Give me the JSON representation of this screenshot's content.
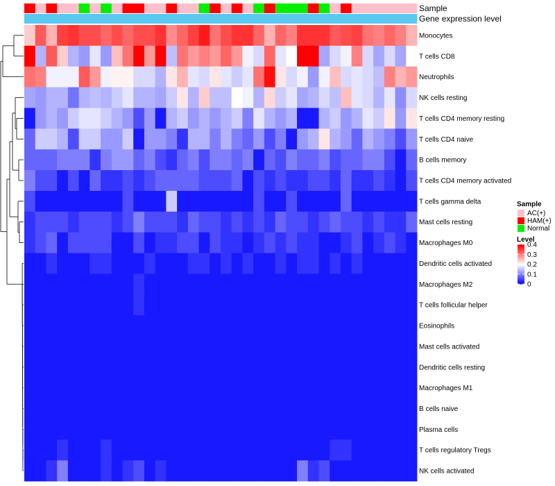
{
  "chart_data": {
    "type": "heatmap",
    "title": "",
    "annotation_labels": [
      "Sample",
      "Gene expression level"
    ],
    "columns": 36,
    "sample_groups": [
      "AC(+)",
      "HAM(+)",
      "Normal"
    ],
    "sample_colors": {
      "AC(+)": "#ffc0cb",
      "HAM(+)": "#ff0000",
      "Normal": "#00ee00"
    },
    "samples": [
      "HAM(+)",
      "AC(+)",
      "HAM(+)",
      "AC(+)",
      "AC(+)",
      "Normal",
      "AC(+)",
      "Normal",
      "AC(+)",
      "HAM(+)",
      "HAM(+)",
      "AC(+)",
      "AC(+)",
      "HAM(+)",
      "AC(+)",
      "AC(+)",
      "Normal",
      "HAM(+)",
      "AC(+)",
      "HAM(+)",
      "AC(+)",
      "Normal",
      "HAM(+)",
      "Normal",
      "Normal",
      "Normal",
      "HAM(+)",
      "Normal",
      "AC(+)",
      "HAM(+)",
      "AC(+)",
      "AC(+)",
      "AC(+)",
      "AC(+)",
      "AC(+)",
      "AC(+)"
    ],
    "expression_level_color": "#5bc8f0",
    "legend": {
      "sample_title": "Sample",
      "level_title": "Level",
      "level_ticks": [
        "0.4",
        "0.3",
        "0.2",
        "0.1",
        "0"
      ],
      "level_range": [
        0,
        0.4
      ],
      "level_colors": [
        "#0000ff",
        "#ffffff",
        "#ff0000"
      ]
    },
    "rows": [
      {
        "name": "Monocytes",
        "values": [
          0.24,
          0.33,
          0.26,
          0.35,
          0.36,
          0.34,
          0.34,
          0.32,
          0.34,
          0.32,
          0.34,
          0.34,
          0.36,
          0.29,
          0.32,
          0.35,
          0.38,
          0.31,
          0.34,
          0.36,
          0.36,
          0.32,
          0.26,
          0.32,
          0.3,
          0.36,
          0.36,
          0.36,
          0.33,
          0.34,
          0.35,
          0.31,
          0.3,
          0.32,
          0.3,
          0.26
        ]
      },
      {
        "name": "T cells CD8",
        "values": [
          0.4,
          0.14,
          0.33,
          0.24,
          0.14,
          0.12,
          0.18,
          0.12,
          0.25,
          0.31,
          0.4,
          0.28,
          0.4,
          0.15,
          0.31,
          0.28,
          0.3,
          0.28,
          0.32,
          0.28,
          0.19,
          0.17,
          0.32,
          0.18,
          0.2,
          0.4,
          0.4,
          0.13,
          0.17,
          0.19,
          0.3,
          0.17,
          0.13,
          0.17,
          0.13,
          0.2
        ]
      },
      {
        "name": "Neutrophils",
        "values": [
          0.31,
          0.3,
          0.19,
          0.19,
          0.19,
          0.33,
          0.28,
          0.19,
          0.21,
          0.21,
          0.17,
          0.17,
          0.14,
          0.22,
          0.26,
          0.18,
          0.17,
          0.22,
          0.18,
          0.16,
          0.18,
          0.31,
          0.39,
          0.22,
          0.17,
          0.19,
          0.12,
          0.19,
          0.25,
          0.17,
          0.18,
          0.17,
          0.15,
          0.3,
          0.26,
          0.28
        ]
      },
      {
        "name": "NK cells resting",
        "values": [
          0.13,
          0.12,
          0.14,
          0.14,
          0.09,
          0.14,
          0.15,
          0.14,
          0.16,
          0.18,
          0.14,
          0.14,
          0.13,
          0.16,
          0.22,
          0.14,
          0.24,
          0.15,
          0.15,
          0.2,
          0.19,
          0.14,
          0.23,
          0.16,
          0.18,
          0.13,
          0.14,
          0.17,
          0.15,
          0.25,
          0.18,
          0.17,
          0.14,
          0.18,
          0.11,
          0.17
        ]
      },
      {
        "name": "T cells CD4 memory resting",
        "values": [
          0.02,
          0.12,
          0.14,
          0.12,
          0.16,
          0.18,
          0.18,
          0.16,
          0.14,
          0.12,
          0.06,
          0.12,
          0.02,
          0.14,
          0.16,
          0.12,
          0.14,
          0.12,
          0.14,
          0.16,
          0.1,
          0.18,
          0.14,
          0.12,
          0.14,
          0.02,
          0.02,
          0.14,
          0.16,
          0.12,
          0.14,
          0.18,
          0.16,
          0.22,
          0.12,
          0.22
        ]
      },
      {
        "name": "T cells CD4 naive",
        "values": [
          0.08,
          0.16,
          0.16,
          0.14,
          0.06,
          0.16,
          0.16,
          0.12,
          0.12,
          0.16,
          0.02,
          0.12,
          0.12,
          0.1,
          0.04,
          0.14,
          0.14,
          0.1,
          0.14,
          0.1,
          0.08,
          0.12,
          0.06,
          0.1,
          0.02,
          0.12,
          0.14,
          0.22,
          0.14,
          0.12,
          0.08,
          0.14,
          0.12,
          0.1,
          0.06,
          0.12
        ]
      },
      {
        "name": "B cells memory",
        "values": [
          0.08,
          0.08,
          0.08,
          0.1,
          0.1,
          0.1,
          0.04,
          0.1,
          0.12,
          0.12,
          0.08,
          0.1,
          0.06,
          0.04,
          0.08,
          0.1,
          0.06,
          0.1,
          0.1,
          0.08,
          0.1,
          0.02,
          0.08,
          0.06,
          0.1,
          0.08,
          0.08,
          0.1,
          0.06,
          0.08,
          0.08,
          0.1,
          0.1,
          0.06,
          0.02,
          0.08
        ]
      },
      {
        "name": "T cells CD4 memory activated",
        "values": [
          0.1,
          0.06,
          0.06,
          0.02,
          0.06,
          0.02,
          0.08,
          0.04,
          0.04,
          0.06,
          0.04,
          0.06,
          0.08,
          0.08,
          0.08,
          0.08,
          0.06,
          0.06,
          0.06,
          0.08,
          0.02,
          0.06,
          0.04,
          0.06,
          0.04,
          0.04,
          0.06,
          0.06,
          0.04,
          0.08,
          0.04,
          0.04,
          0.06,
          0.04,
          0.02,
          0.06
        ]
      },
      {
        "name": "T cells gamma delta",
        "values": [
          0.06,
          0.02,
          0.02,
          0.02,
          0.02,
          0.02,
          0.02,
          0.02,
          0.02,
          0.06,
          0.02,
          0.02,
          0.02,
          0.16,
          0.02,
          0.02,
          0.02,
          0.02,
          0.02,
          0.02,
          0.02,
          0.06,
          0.02,
          0.02,
          0.06,
          0.02,
          0.02,
          0.02,
          0.02,
          0.08,
          0.02,
          0.02,
          0.02,
          0.02,
          0.02,
          0.02
        ]
      },
      {
        "name": "Mast cells resting",
        "values": [
          0.04,
          0.06,
          0.06,
          0.06,
          0.04,
          0.06,
          0.06,
          0.06,
          0.04,
          0.06,
          0.1,
          0.06,
          0.06,
          0.06,
          0.04,
          0.08,
          0.06,
          0.06,
          0.04,
          0.06,
          0.04,
          0.06,
          0.04,
          0.08,
          0.06,
          0.06,
          0.04,
          0.06,
          0.08,
          0.06,
          0.06,
          0.04,
          0.06,
          0.04,
          0.04,
          0.08
        ]
      },
      {
        "name": "Macrophages M0",
        "values": [
          0.04,
          0.06,
          0.08,
          0.02,
          0.06,
          0.06,
          0.06,
          0.06,
          0.02,
          0.02,
          0.06,
          0.02,
          0.04,
          0.04,
          0.06,
          0.06,
          0.02,
          0.06,
          0.04,
          0.04,
          0.02,
          0.04,
          0.06,
          0.04,
          0.06,
          0.04,
          0.04,
          0.02,
          0.02,
          0.04,
          0.06,
          0.02,
          0.04,
          0.06,
          0.04,
          0.02
        ]
      },
      {
        "name": "Dendritic cells activated",
        "values": [
          0.02,
          0.02,
          0.04,
          0.02,
          0.02,
          0.02,
          0.04,
          0.04,
          0.02,
          0.02,
          0.02,
          0.04,
          0.02,
          0.02,
          0.02,
          0.04,
          0.04,
          0.02,
          0.04,
          0.02,
          0.04,
          0.02,
          0.02,
          0.04,
          0.02,
          0.04,
          0.04,
          0.02,
          0.04,
          0.02,
          0.04,
          0.02,
          0.02,
          0.02,
          0.02,
          0.02
        ]
      },
      {
        "name": "Macrophages M2",
        "values": [
          0.02,
          0.02,
          0.02,
          0.02,
          0.02,
          0.02,
          0.02,
          0.02,
          0.02,
          0.02,
          0.04,
          0.02,
          0.02,
          0.02,
          0.02,
          0.02,
          0.02,
          0.02,
          0.02,
          0.02,
          0.02,
          0.02,
          0.02,
          0.02,
          0.02,
          0.02,
          0.02,
          0.02,
          0.02,
          0.02,
          0.02,
          0.02,
          0.02,
          0.02,
          0.02,
          0.02
        ]
      },
      {
        "name": "T cells follicular helper",
        "values": [
          0.02,
          0.02,
          0.02,
          0.02,
          0.02,
          0.02,
          0.02,
          0.02,
          0.02,
          0.02,
          0.04,
          0.02,
          0.02,
          0.02,
          0.02,
          0.02,
          0.02,
          0.02,
          0.02,
          0.02,
          0.02,
          0.02,
          0.02,
          0.02,
          0.02,
          0.02,
          0.02,
          0.02,
          0.02,
          0.02,
          0.02,
          0.02,
          0.02,
          0.02,
          0.02,
          0.02
        ]
      },
      {
        "name": "Eosinophils",
        "values": [
          0.02,
          0.02,
          0.02,
          0.02,
          0.02,
          0.02,
          0.02,
          0.02,
          0.02,
          0.02,
          0.02,
          0.02,
          0.02,
          0.02,
          0.02,
          0.02,
          0.02,
          0.02,
          0.02,
          0.02,
          0.02,
          0.02,
          0.02,
          0.02,
          0.02,
          0.02,
          0.02,
          0.02,
          0.02,
          0.02,
          0.02,
          0.02,
          0.02,
          0.02,
          0.02,
          0.02
        ]
      },
      {
        "name": "Mast cells activated",
        "values": [
          0.02,
          0.02,
          0.02,
          0.02,
          0.02,
          0.02,
          0.02,
          0.02,
          0.02,
          0.02,
          0.02,
          0.02,
          0.02,
          0.02,
          0.02,
          0.02,
          0.02,
          0.02,
          0.02,
          0.02,
          0.02,
          0.02,
          0.02,
          0.02,
          0.02,
          0.02,
          0.02,
          0.02,
          0.02,
          0.02,
          0.02,
          0.02,
          0.02,
          0.02,
          0.02,
          0.02
        ]
      },
      {
        "name": "Dendritic cells resting",
        "values": [
          0.02,
          0.02,
          0.02,
          0.02,
          0.02,
          0.02,
          0.02,
          0.02,
          0.02,
          0.02,
          0.02,
          0.02,
          0.02,
          0.02,
          0.02,
          0.02,
          0.02,
          0.02,
          0.02,
          0.02,
          0.02,
          0.02,
          0.02,
          0.02,
          0.02,
          0.02,
          0.02,
          0.02,
          0.02,
          0.02,
          0.02,
          0.02,
          0.02,
          0.02,
          0.02,
          0.02
        ]
      },
      {
        "name": "Macrophages M1",
        "values": [
          0.02,
          0.02,
          0.02,
          0.02,
          0.02,
          0.02,
          0.02,
          0.02,
          0.02,
          0.02,
          0.02,
          0.02,
          0.02,
          0.02,
          0.02,
          0.02,
          0.02,
          0.02,
          0.02,
          0.02,
          0.02,
          0.02,
          0.02,
          0.02,
          0.02,
          0.02,
          0.02,
          0.02,
          0.02,
          0.02,
          0.02,
          0.02,
          0.02,
          0.02,
          0.02,
          0.02
        ]
      },
      {
        "name": "B cells naive",
        "values": [
          0.02,
          0.02,
          0.02,
          0.02,
          0.02,
          0.02,
          0.02,
          0.02,
          0.02,
          0.02,
          0.02,
          0.02,
          0.02,
          0.02,
          0.02,
          0.02,
          0.02,
          0.02,
          0.02,
          0.02,
          0.02,
          0.02,
          0.02,
          0.02,
          0.02,
          0.02,
          0.02,
          0.02,
          0.02,
          0.02,
          0.02,
          0.02,
          0.02,
          0.02,
          0.02,
          0.02
        ]
      },
      {
        "name": "Plasma cells",
        "values": [
          0.02,
          0.02,
          0.02,
          0.02,
          0.02,
          0.02,
          0.02,
          0.02,
          0.02,
          0.02,
          0.02,
          0.02,
          0.02,
          0.02,
          0.02,
          0.02,
          0.02,
          0.02,
          0.02,
          0.02,
          0.02,
          0.02,
          0.02,
          0.02,
          0.02,
          0.02,
          0.02,
          0.02,
          0.02,
          0.02,
          0.02,
          0.02,
          0.02,
          0.02,
          0.02,
          0.02
        ]
      },
      {
        "name": "T cells regulatory  Tregs",
        "values": [
          0.02,
          0.02,
          0.02,
          0.04,
          0.02,
          0.02,
          0.02,
          0.04,
          0.02,
          0.02,
          0.02,
          0.02,
          0.02,
          0.02,
          0.02,
          0.02,
          0.02,
          0.02,
          0.02,
          0.02,
          0.02,
          0.02,
          0.02,
          0.02,
          0.02,
          0.02,
          0.02,
          0.02,
          0.04,
          0.04,
          0.02,
          0.02,
          0.02,
          0.02,
          0.02,
          0.02
        ]
      },
      {
        "name": "NK cells activated",
        "values": [
          0.02,
          0.02,
          0.04,
          0.1,
          0.02,
          0.02,
          0.02,
          0.04,
          0.02,
          0.04,
          0.06,
          0.02,
          0.04,
          0.02,
          0.02,
          0.02,
          0.02,
          0.02,
          0.02,
          0.02,
          0.02,
          0.02,
          0.02,
          0.02,
          0.02,
          0.1,
          0.04,
          0.06,
          0.02,
          0.02,
          0.02,
          0.02,
          0.02,
          0.02,
          0.02,
          0.02
        ]
      }
    ]
  }
}
